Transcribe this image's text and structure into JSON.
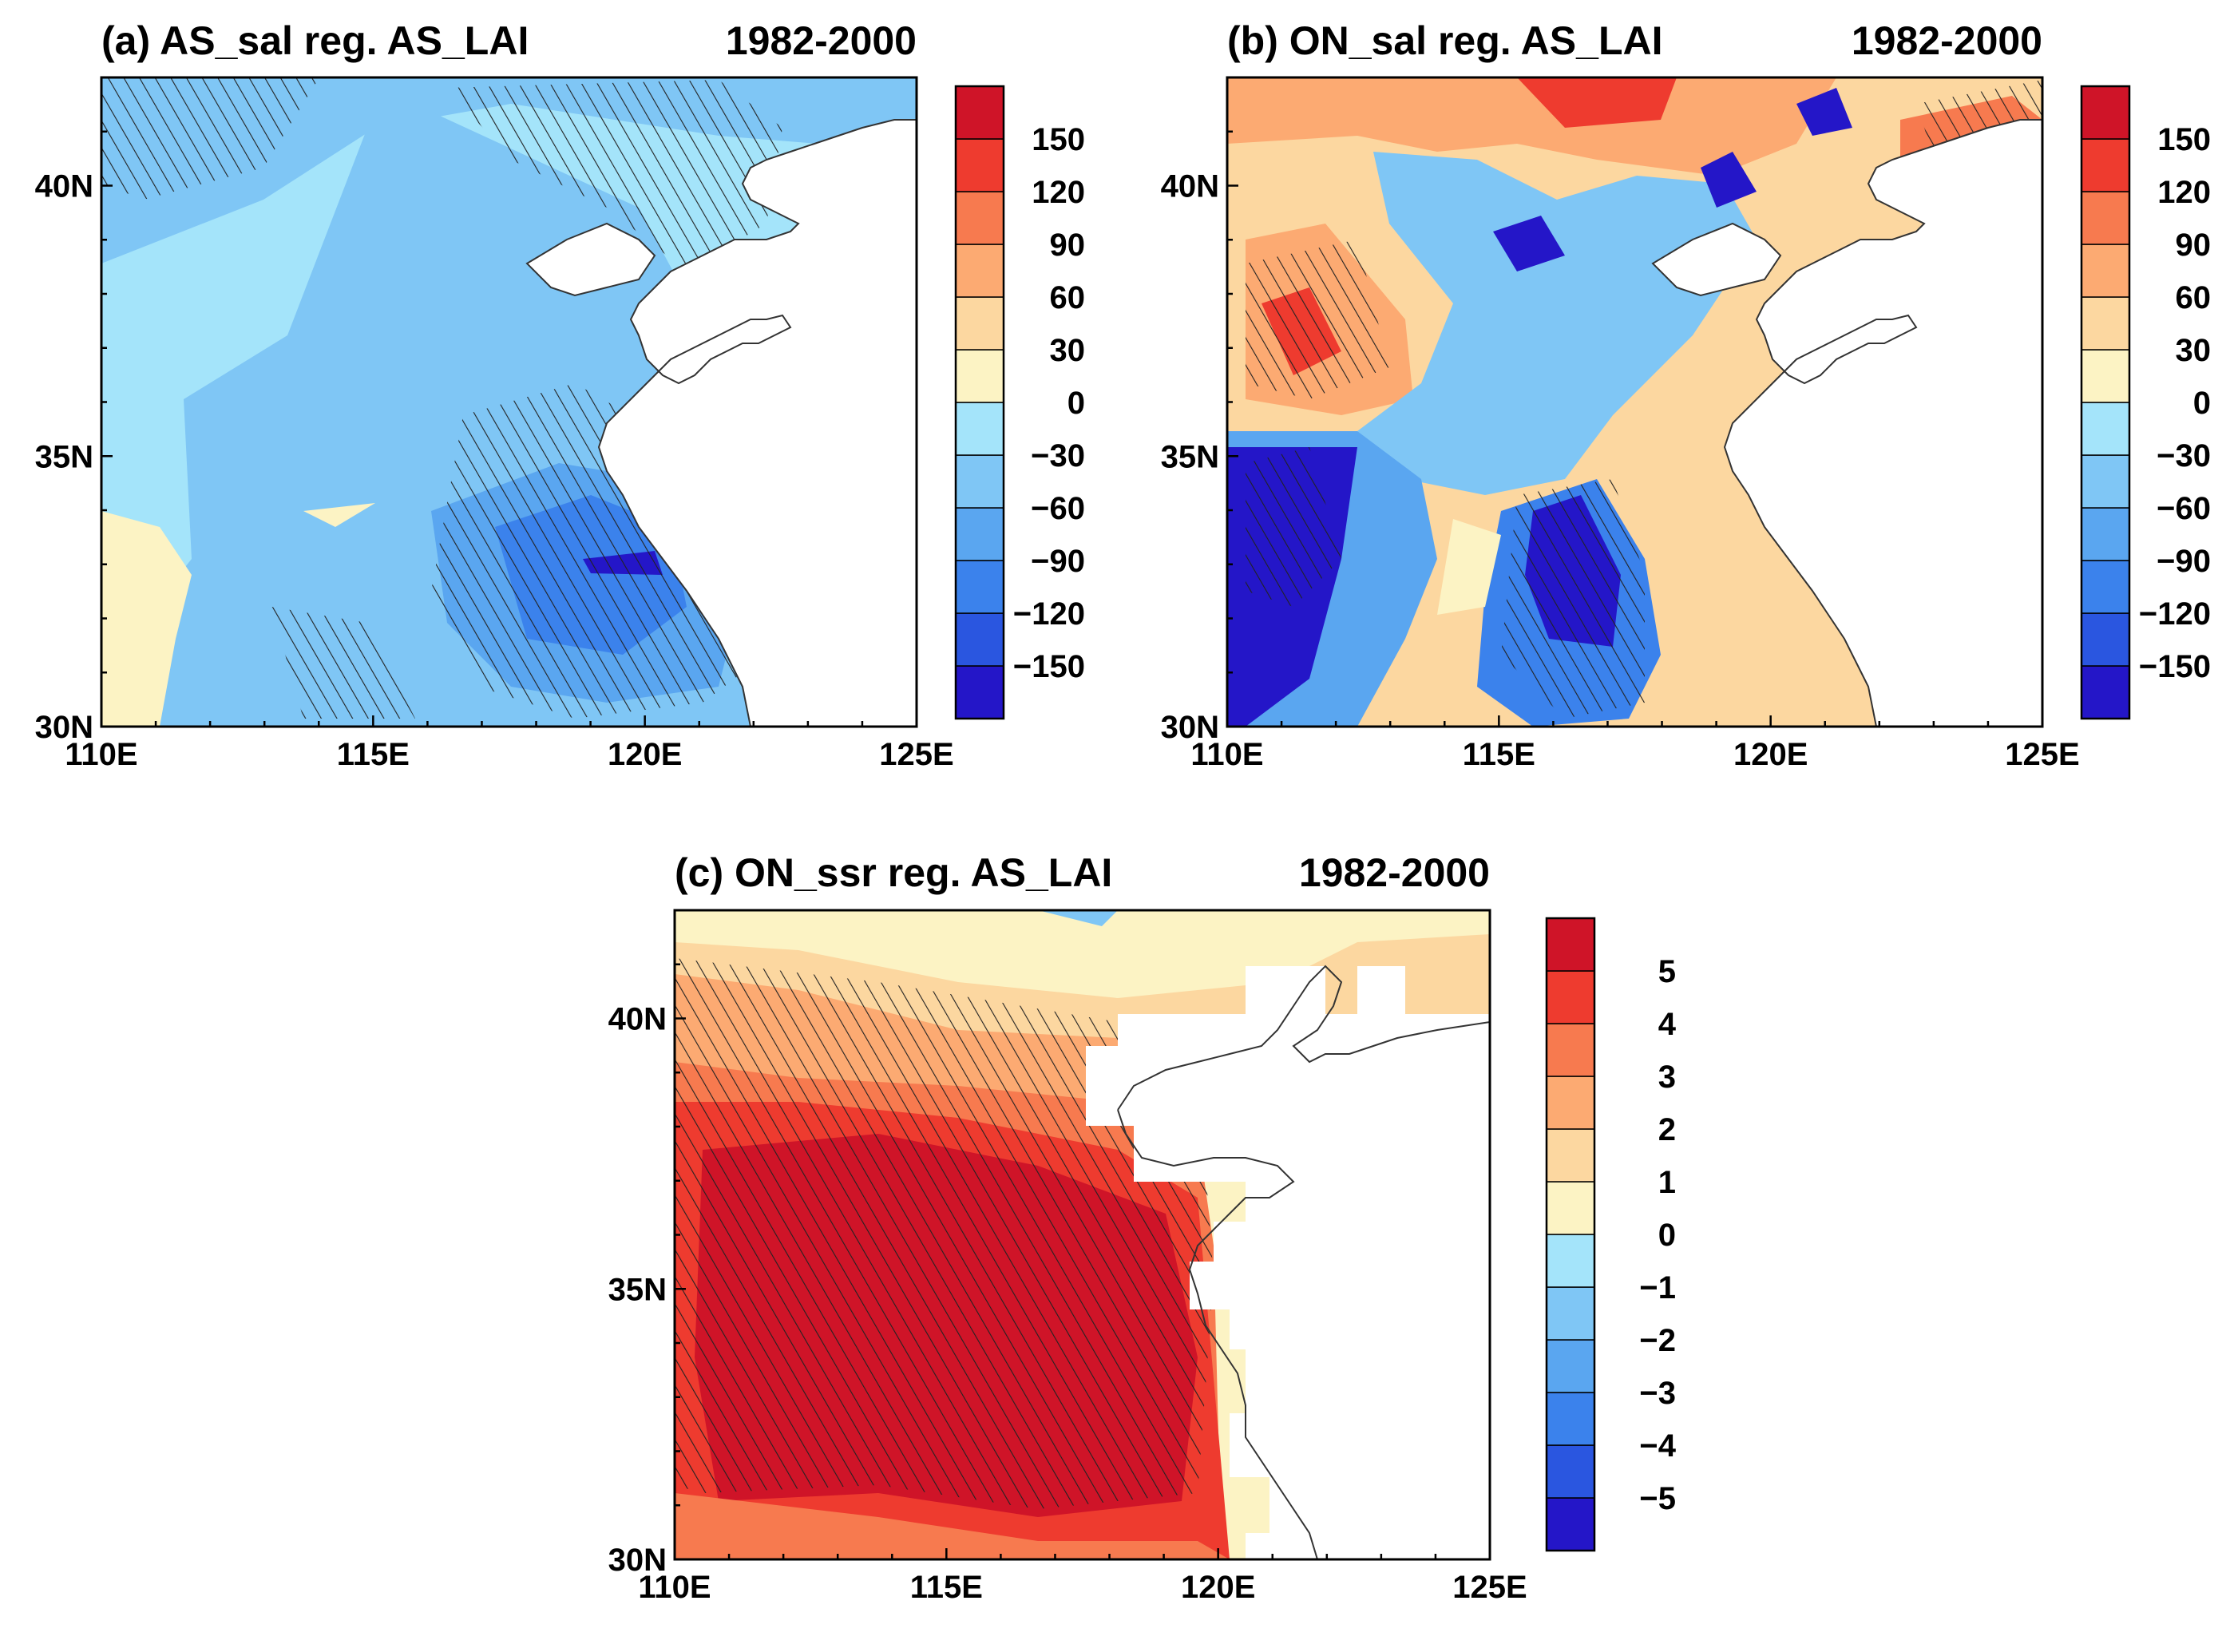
{
  "figure": {
    "colors": [
      "#2416c8",
      "#2a56e0",
      "#3b82ec",
      "#5aa6f0",
      "#7fc6f5",
      "#a4e4fa",
      "#fcf3c4",
      "#fcd7a0",
      "#fcaa72",
      "#f77a4f",
      "#ee3b2f",
      "#cf1428"
    ],
    "land_color": "#ffffff",
    "coast_color": "#333333",
    "lon_range": [
      110,
      125
    ],
    "lat_range": [
      30,
      42
    ],
    "lon_ticks": [
      "110E",
      "115E",
      "120E",
      "125E"
    ],
    "lat_ticks": [
      "30N",
      "35N",
      "40N"
    ]
  },
  "panels": [
    {
      "id": "a",
      "title": "(a) AS_sal reg. AS_LAI",
      "period": "1982-2000",
      "colorbar_levels": [
        "150",
        "120",
        "90",
        "60",
        "30",
        "0",
        "−30",
        "−60",
        "−90",
        "−120",
        "−150"
      ]
    },
    {
      "id": "b",
      "title": "(b) ON_sal reg. AS_LAI",
      "period": "1982-2000",
      "colorbar_levels": [
        "150",
        "120",
        "90",
        "60",
        "30",
        "0",
        "−30",
        "−60",
        "−90",
        "−120",
        "−150"
      ]
    },
    {
      "id": "c",
      "title": "(c) ON_ssr reg. AS_LAI",
      "period": "1982-2000",
      "colorbar_levels": [
        "5",
        "4",
        "3",
        "2",
        "1",
        "0",
        "−1",
        "−2",
        "−3",
        "−4",
        "−5"
      ]
    }
  ]
}
